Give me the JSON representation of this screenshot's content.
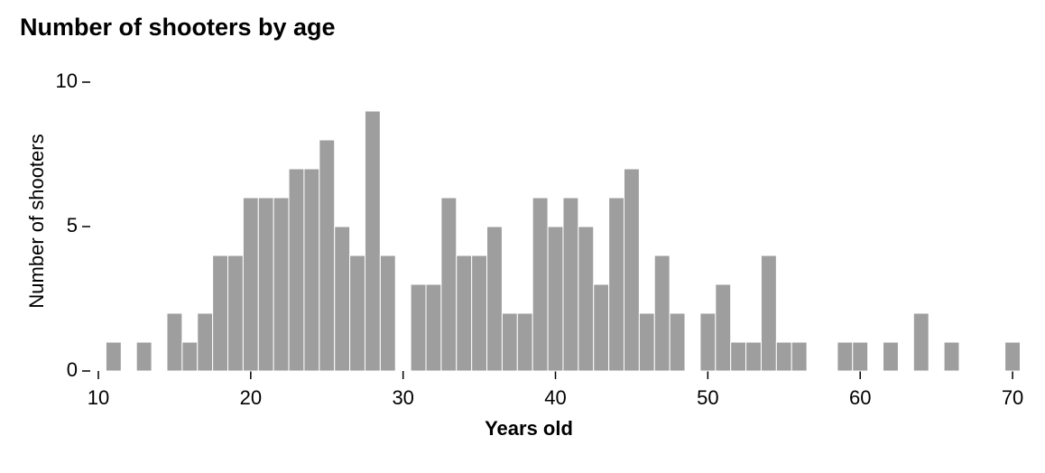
{
  "chart_data": {
    "type": "histogram",
    "title": "Number of shooters by age",
    "x_label": "Years old",
    "y_label": "Number of shooters",
    "bins": [
      10.5,
      11.5,
      12.5,
      13.5,
      14.5,
      15.5,
      16.5,
      17.5,
      18.5,
      19.5,
      20.5,
      21.5,
      22.5,
      23.5,
      24.5,
      25.5,
      26.5,
      27.5,
      28.5,
      29.5,
      30.5,
      31.5,
      32.5,
      33.5,
      34.5,
      35.5,
      36.5,
      37.5,
      38.5,
      39.5,
      40.5,
      41.5,
      42.5,
      43.5,
      44.5,
      45.5,
      46.5,
      47.5,
      48.5,
      49.5,
      50.5,
      51.5,
      52.5,
      53.5,
      54.5,
      55.5,
      56.5,
      57.5,
      58.5,
      59.5,
      60.5,
      61.5,
      62.5,
      63.5,
      64.5,
      65.5,
      66.5,
      67.5,
      68.5,
      69.5,
      70.5
    ],
    "values": [
      1,
      0,
      1,
      0,
      2,
      1,
      2,
      4,
      4,
      6,
      6,
      6,
      7,
      7,
      8,
      5,
      4,
      9,
      4,
      0,
      3,
      3,
      6,
      4,
      4,
      5,
      2,
      2,
      6,
      5,
      6,
      5,
      3,
      6,
      7,
      2,
      4,
      2,
      0,
      2,
      3,
      1,
      1,
      4,
      1,
      1,
      0,
      0,
      1,
      1,
      0,
      1,
      0,
      2,
      0,
      1,
      0,
      0,
      0,
      1
    ],
    "color": "#9e9e9e",
    "xlim": [
      10,
      70.5
    ],
    "xticks": [
      10,
      20,
      30,
      40,
      50,
      60,
      70
    ],
    "ylim": [
      0,
      10
    ],
    "yticks": [
      0,
      5,
      10
    ]
  }
}
